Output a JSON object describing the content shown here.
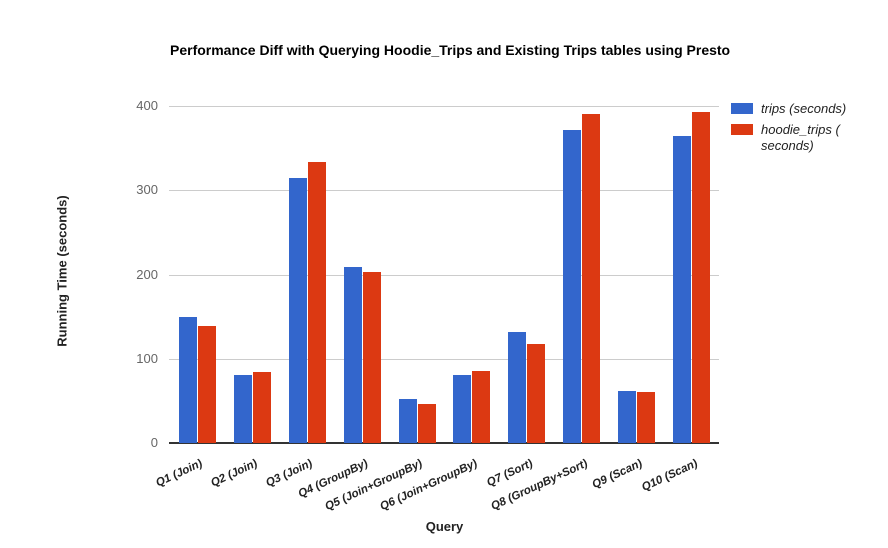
{
  "chart_title": "Performance Diff with Querying Hoodie_Trips and Existing Trips tables using Presto",
  "legend": {
    "position": "right",
    "items": [
      {
        "series": "trips (seconds)",
        "color": "#3366cc",
        "lines": [
          "trips (seconds)"
        ]
      },
      {
        "series": "hoodie_trips (seconds)",
        "color": "#dc3912",
        "lines": [
          "hoodie_trips (",
          "seconds)"
        ]
      }
    ]
  },
  "chart_data": {
    "type": "bar",
    "title": "Performance Diff with Querying Hoodie_Trips and Existing Trips tables using Presto",
    "xlabel": "Query",
    "ylabel": "Running Time (seconds)",
    "ylim": [
      0,
      400
    ],
    "yticks": [
      0,
      100,
      200,
      300,
      400
    ],
    "grid": true,
    "legend_position": "right",
    "categories": [
      "Q1 (Join)",
      "Q2 (Join)",
      "Q3 (Join)",
      "Q4 (GroupBy)",
      "Q5 (Join+GroupBy)",
      "Q6 (Join+GroupBy)",
      "Q7 (Sort)",
      "Q8 (GroupBy+Sort)",
      "Q9 (Scan)",
      "Q10 (Scan)"
    ],
    "series": [
      {
        "name": "trips (seconds)",
        "color": "#3366cc",
        "values": [
          150,
          81,
          314,
          209,
          52,
          81,
          132,
          372,
          62,
          364
        ]
      },
      {
        "name": "hoodie_trips (seconds)",
        "color": "#dc3912",
        "values": [
          139,
          84,
          333,
          203,
          46,
          85,
          118,
          391,
          60,
          393
        ]
      }
    ]
  },
  "style_colors": {
    "gridline": "#cccccc",
    "baseline": "#333333",
    "tick_label": "#666666",
    "text": "#222222"
  }
}
